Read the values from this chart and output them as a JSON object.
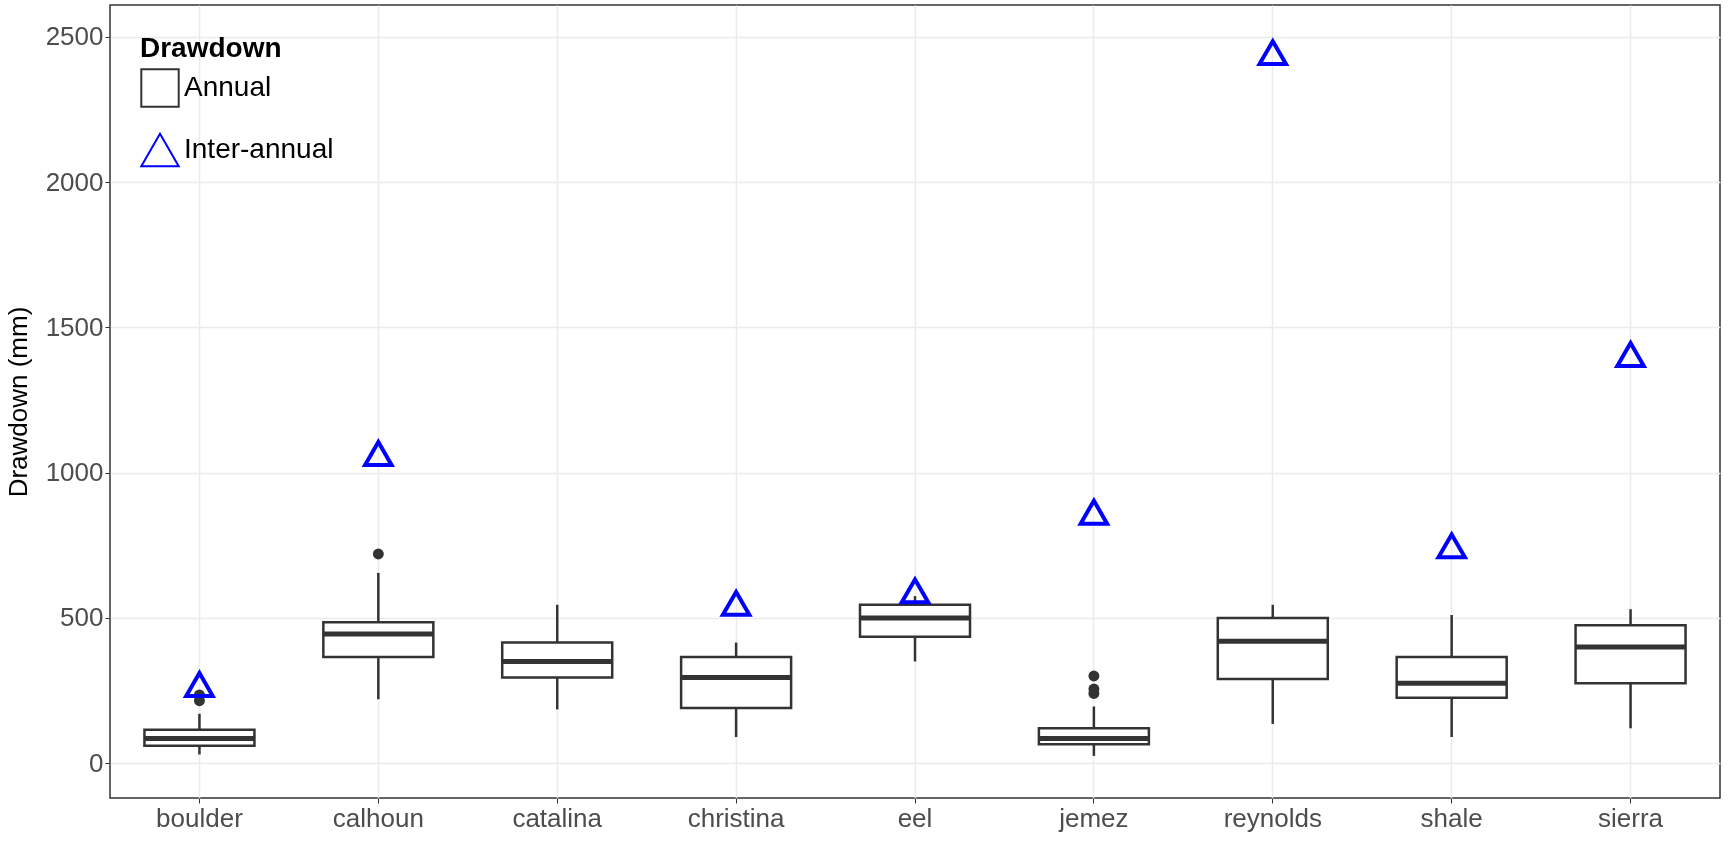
{
  "chart_data": {
    "type": "box",
    "ylabel": "Drawdown (mm)",
    "legend_title": "Drawdown",
    "legend": "top left",
    "grid": true,
    "categories": [
      "boulder",
      "calhoun",
      "catalina",
      "christina",
      "eel",
      "jemez",
      "reynolds",
      "shale",
      "sierra"
    ],
    "ylim": [
      -120,
      2610
    ],
    "yticks": [
      0,
      500,
      1000,
      1500,
      2000,
      2500
    ],
    "series": [
      {
        "name": "Annual",
        "color": "#333333",
        "boxes": [
          {
            "low": 30,
            "q1": 60,
            "median": 85,
            "q3": 115,
            "high": 170,
            "outliers": [
              215,
              235
            ]
          },
          {
            "low": 220,
            "q1": 365,
            "median": 445,
            "q3": 485,
            "high": 655,
            "outliers": [
              720
            ]
          },
          {
            "low": 185,
            "q1": 295,
            "median": 350,
            "q3": 415,
            "high": 545
          },
          {
            "low": 90,
            "q1": 190,
            "median": 295,
            "q3": 365,
            "high": 415
          },
          {
            "low": 350,
            "q1": 435,
            "median": 500,
            "q3": 545,
            "high": 575
          },
          {
            "low": 25,
            "q1": 65,
            "median": 85,
            "q3": 120,
            "high": 195,
            "outliers": [
              240,
              255,
              300
            ]
          },
          {
            "low": 135,
            "q1": 290,
            "median": 420,
            "q3": 500,
            "high": 545
          },
          {
            "low": 90,
            "q1": 225,
            "median": 275,
            "q3": 365,
            "high": 510
          },
          {
            "low": 120,
            "q1": 275,
            "median": 400,
            "q3": 475,
            "high": 530
          }
        ]
      },
      {
        "name": "Inter-annual",
        "type": "scatter",
        "marker": "triangle",
        "color": "#0000ff",
        "values": [
          271,
          1066,
          null,
          550,
          593,
          864,
          2446,
          748,
          1407
        ]
      }
    ]
  }
}
